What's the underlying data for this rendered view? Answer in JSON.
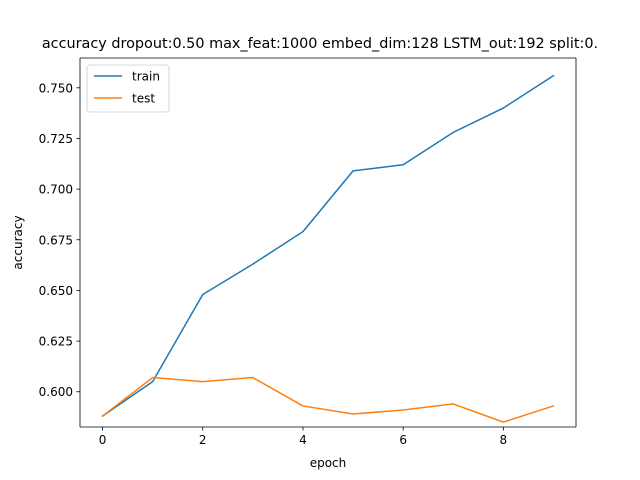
{
  "chart_data": {
    "type": "line",
    "title": "accuracy dropout:0.50 max_feat:1000 embed_dim:128 LSTM_out:192 split:0.",
    "xlabel": "epoch",
    "ylabel": "accuracy",
    "xlim": [
      -0.45,
      9.45
    ],
    "ylim": [
      0.5826,
      0.7647
    ],
    "x": [
      0,
      1,
      2,
      3,
      4,
      5,
      6,
      7,
      8,
      9
    ],
    "xticks": [
      0,
      2,
      4,
      6,
      8
    ],
    "xtick_labels": [
      "0",
      "2",
      "4",
      "6",
      "8"
    ],
    "yticks": [
      0.6,
      0.625,
      0.65,
      0.675,
      0.7,
      0.725,
      0.75
    ],
    "ytick_labels": [
      "0.600",
      "0.625",
      "0.650",
      "0.675",
      "0.700",
      "0.725",
      "0.750"
    ],
    "grid": false,
    "legend_position": "top-left",
    "series": [
      {
        "name": "train",
        "color": "#1f77b4",
        "values": [
          0.588,
          0.605,
          0.648,
          0.663,
          0.679,
          0.709,
          0.712,
          0.728,
          0.74,
          0.756
        ]
      },
      {
        "name": "test",
        "color": "#ff7f0e",
        "values": [
          0.588,
          0.607,
          0.605,
          0.607,
          0.593,
          0.589,
          0.591,
          0.594,
          0.585,
          0.593
        ]
      }
    ]
  }
}
